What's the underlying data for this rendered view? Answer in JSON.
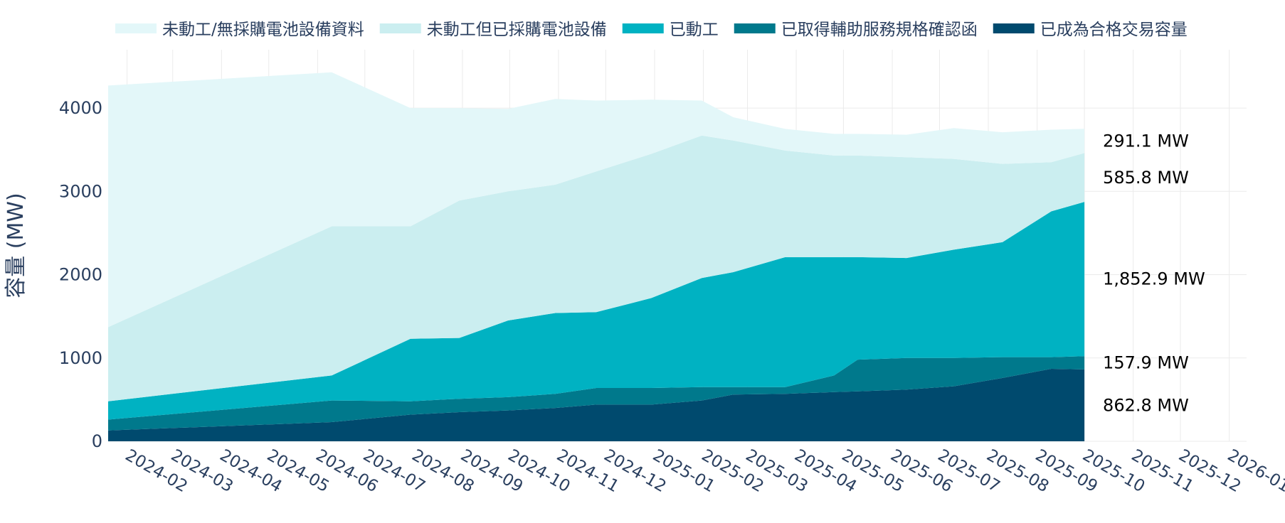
{
  "chart_data": {
    "type": "area",
    "stacked": true,
    "ylabel": "容量 (MW)",
    "ylim": [
      0,
      4700
    ],
    "yticks": [
      0,
      1000,
      2000,
      3000,
      4000
    ],
    "xlim": [
      "2024-01-20",
      "2026-01-12"
    ],
    "xticks": [
      "2024-02",
      "2024-03",
      "2024-04",
      "2024-05",
      "2024-06",
      "2024-07",
      "2024-08",
      "2024-09",
      "2024-10",
      "2024-11",
      "2024-12",
      "2025-01",
      "2025-02",
      "2025-03",
      "2025-04",
      "2025-05",
      "2025-06",
      "2025-07",
      "2025-08",
      "2025-09",
      "2025-10",
      "2025-11",
      "2025-12",
      "2026-01"
    ],
    "grid": true,
    "legend_position": "top",
    "x": [
      "2024-01-20",
      "2024-06-10",
      "2024-07-30",
      "2024-08-30",
      "2024-09-30",
      "2024-10-30",
      "2024-11-25",
      "2024-12-30",
      "2025-01-31",
      "2025-02-20",
      "2025-03-25",
      "2025-04-25",
      "2025-05-10",
      "2025-06-10",
      "2025-07-10",
      "2025-08-10",
      "2025-09-10",
      "2025-10-01"
    ],
    "series": [
      {
        "name": "已成為合格交易容量",
        "color": "#004a6e",
        "values": [
          130,
          230,
          320,
          350,
          370,
          400,
          440,
          440,
          490,
          560,
          570,
          590,
          600,
          620,
          660,
          760,
          870,
          862.8
        ]
      },
      {
        "name": "已取得輔助服務規格確認函",
        "color": "#00798c",
        "values": [
          130,
          260,
          160,
          160,
          160,
          170,
          200,
          200,
          160,
          90,
          80,
          200,
          380,
          380,
          340,
          250,
          140,
          157.9
        ]
      },
      {
        "name": "已動工",
        "color": "#00b2c2",
        "values": [
          220,
          300,
          750,
          730,
          920,
          970,
          910,
          1080,
          1310,
          1380,
          1560,
          1420,
          1230,
          1200,
          1300,
          1380,
          1750,
          1852.9
        ]
      },
      {
        "name": "未動工但已採購電池設備",
        "color": "#cbeef0",
        "values": [
          890,
          1790,
          1350,
          1650,
          1550,
          1540,
          1690,
          1730,
          1710,
          1580,
          1280,
          1220,
          1220,
          1210,
          1090,
          940,
          590,
          585.8
        ]
      },
      {
        "name": "未動工/無採購電池設備資料",
        "color": "#e3f7f9",
        "values": [
          2900,
          1850,
          1420,
          1110,
          990,
          1030,
          850,
          650,
          420,
          280,
          260,
          260,
          260,
          270,
          370,
          380,
          390,
          291.1
        ]
      }
    ],
    "end_labels": [
      "291.1 MW",
      "585.8 MW",
      "1,852.9 MW",
      "157.9 MW",
      "862.8 MW"
    ]
  }
}
